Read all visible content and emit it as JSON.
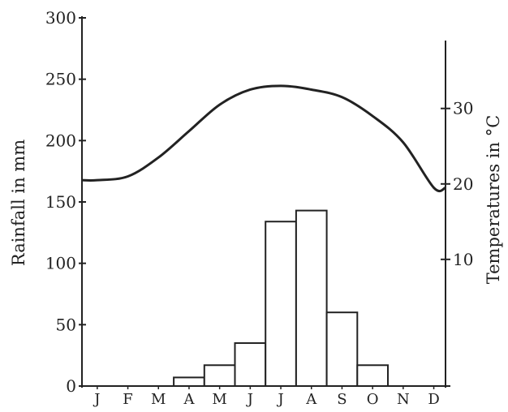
{
  "chart_data": {
    "type": "bar+line",
    "title": "",
    "categories": [
      "J",
      "F",
      "M",
      "A",
      "M",
      "J",
      "J",
      "A",
      "S",
      "O",
      "N",
      "D"
    ],
    "series": [
      {
        "type": "bar",
        "axis": "left",
        "values": [
          0,
          0,
          0,
          7,
          17,
          35,
          134,
          143,
          60,
          17,
          0,
          0
        ]
      },
      {
        "type": "line",
        "axis": "right",
        "values": [
          20.5,
          21,
          23.5,
          27,
          30.5,
          32.5,
          33,
          32.5,
          31.5,
          29,
          25.5,
          19.5
        ]
      }
    ],
    "left_axis": {
      "label": "Rainfall in mm",
      "range": [
        0,
        300
      ],
      "ticks": [
        0,
        50,
        100,
        150,
        200,
        250,
        300
      ],
      "tick_labels": [
        "0",
        "50",
        "100",
        "150",
        "200",
        "250",
        "300"
      ]
    },
    "right_axis": {
      "label": "Temperatures in °C",
      "range": [
        -7,
        39
      ],
      "ticks": [
        10,
        20,
        30
      ],
      "tick_labels": [
        "10",
        "20",
        "30"
      ]
    },
    "x_tick_labels": [
      "J",
      "F",
      "M",
      "A",
      "M",
      "J",
      "J",
      "A",
      "S",
      "O",
      "N",
      "D"
    ],
    "grid": false,
    "legend": "none",
    "colors": {
      "line": "#222222",
      "bar_stroke": "#222222",
      "bar_fill": "#ffffff",
      "text": "#222222"
    }
  }
}
